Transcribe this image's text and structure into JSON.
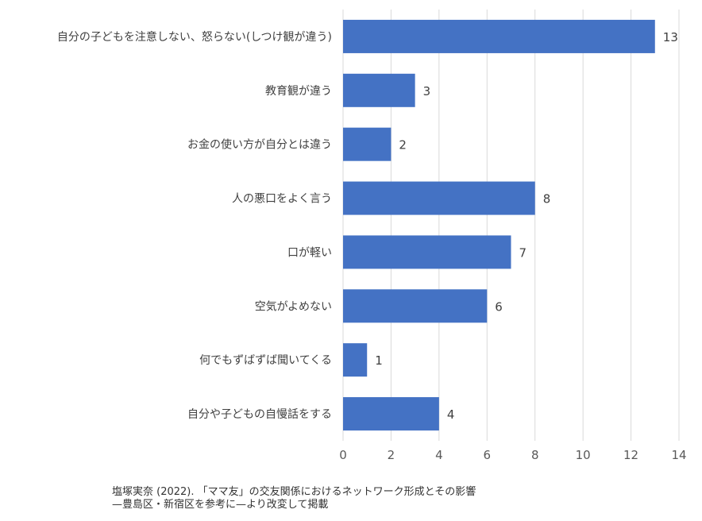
{
  "chart_data": {
    "type": "bar",
    "orientation": "horizontal",
    "categories": [
      "自分の子どもを注意しない、怒らない(しつけ観が違う)",
      "教育観が違う",
      "お金の使い方が自分とは違う",
      "人の悪口をよく言う",
      "口が軽い",
      "空気がよめない",
      "何でもずばずば聞いてくる",
      "自分や子どもの自慢話をする"
    ],
    "values": [
      13,
      3,
      2,
      8,
      7,
      6,
      1,
      4
    ],
    "xlim": [
      0,
      14
    ],
    "xticks": [
      0,
      2,
      4,
      6,
      8,
      10,
      12,
      14
    ],
    "grid": true,
    "bar_color": "#4472C4",
    "grid_color": "#D9D9D9",
    "data_labels": true
  },
  "source": {
    "line1": "塩塚実奈 (2022). 「ママ友」の交友関係におけるネットワーク形成とその影響",
    "line2": "—豊島区・新宿区を参考に—より改変して掲載"
  }
}
